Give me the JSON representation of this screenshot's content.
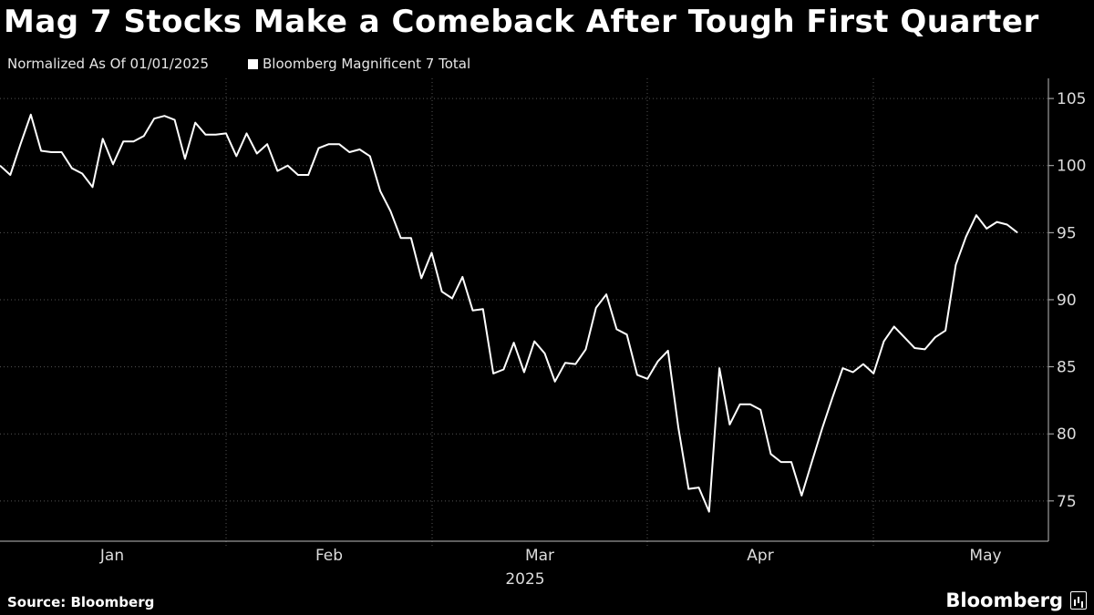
{
  "header": {
    "title": "Mag 7 Stocks Make a Comeback After Tough First Quarter",
    "subtitle": "Normalized As Of 01/01/2025",
    "legend_label": "Bloomberg Magnificent 7 Total"
  },
  "footer": {
    "source": "Source: Bloomberg",
    "brand": "Bloomberg"
  },
  "colors": {
    "background": "#000000",
    "line": "#ffffff",
    "grid": "#555555"
  },
  "chart_data": {
    "type": "line",
    "title": "Mag 7 Stocks Make a Comeback After Tough First Quarter",
    "subtitle": "Normalized As Of 01/01/2025",
    "x_year_label": "2025",
    "month_labels": [
      "Jan",
      "Feb",
      "Mar",
      "Apr",
      "May"
    ],
    "yticks": [
      75,
      80,
      85,
      90,
      95,
      100,
      105
    ],
    "ylim": [
      72,
      106.5
    ],
    "y_axis_side": "right",
    "grid": "dotted",
    "legend_placement": "top-left",
    "series": [
      {
        "name": "Bloomberg Magnificent 7 Total",
        "values": [
          100.0,
          99.3,
          101.6,
          103.8,
          101.1,
          101.0,
          101.0,
          99.8,
          99.4,
          98.4,
          102.0,
          100.1,
          101.8,
          101.8,
          102.2,
          103.5,
          103.7,
          103.4,
          100.5,
          103.2,
          102.3,
          102.3,
          102.4,
          100.7,
          102.4,
          100.9,
          101.6,
          99.6,
          100.0,
          99.3,
          99.3,
          101.3,
          101.6,
          101.6,
          101.0,
          101.2,
          100.7,
          98.1,
          96.6,
          94.6,
          94.6,
          91.6,
          93.5,
          90.6,
          90.1,
          91.7,
          89.2,
          89.3,
          84.5,
          84.8,
          86.8,
          84.6,
          86.9,
          86.0,
          83.9,
          85.3,
          85.2,
          86.3,
          89.4,
          90.4,
          87.8,
          87.4,
          84.4,
          84.1,
          85.4,
          86.2,
          80.5,
          75.9,
          76.0,
          74.2,
          84.9,
          80.7,
          82.2,
          82.2,
          81.8,
          78.5,
          77.9,
          77.9,
          75.4,
          77.9,
          80.4,
          82.7,
          84.9,
          84.6,
          85.2,
          84.5,
          86.9,
          88.0,
          87.2,
          86.4,
          86.3,
          87.2,
          87.7,
          92.6,
          94.7,
          96.3,
          95.3,
          95.8,
          95.6,
          95.0
        ]
      }
    ]
  }
}
